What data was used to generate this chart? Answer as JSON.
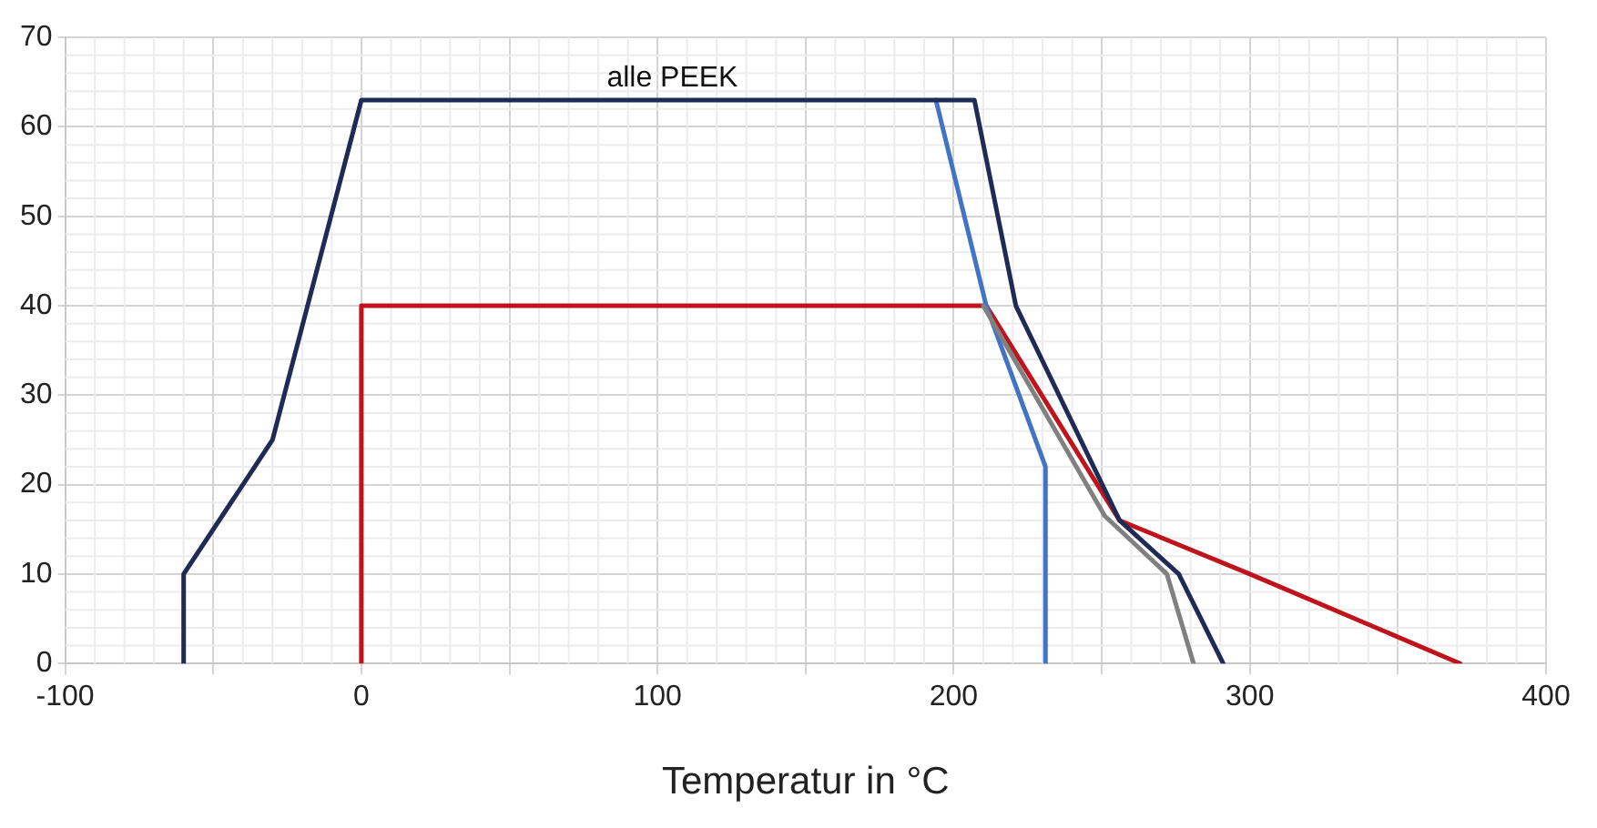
{
  "chart_data": {
    "type": "line",
    "xlabel": "Temperatur in °C",
    "annotations": [
      "alle PEEK"
    ],
    "xlim": [
      -100,
      400
    ],
    "ylim": [
      0,
      70
    ],
    "xticks": [
      -100,
      {
        "value": -50,
        "label": null
      },
      0,
      {
        "value": 50,
        "label": null
      },
      100,
      {
        "value": 150,
        "label": null
      },
      200,
      {
        "value": 250,
        "label": null
      },
      300,
      {
        "value": 350,
        "label": null
      },
      400
    ],
    "yticks": [
      0,
      10,
      20,
      30,
      40,
      50,
      60,
      70
    ],
    "grid": true,
    "legend": false,
    "marker": "none",
    "line_style": "solid",
    "series": [
      {
        "color": "#1f2a55",
        "x": [
          -60,
          -60,
          -30,
          0,
          207,
          221,
          256,
          276,
          291
        ],
        "values": [
          0,
          10,
          25,
          63,
          63,
          40,
          16,
          10,
          0
        ]
      },
      {
        "color": "#808080",
        "x": [
          210,
          251,
          272,
          281
        ],
        "values": [
          40,
          16.5,
          10,
          0
        ]
      },
      {
        "color": "#4472c4",
        "x": [
          194,
          211,
          231,
          231
        ],
        "values": [
          63,
          40,
          22,
          0
        ]
      },
      {
        "color": "#c0141c",
        "x": [
          0,
          0,
          211,
          256,
          300,
          371
        ],
        "values": [
          0,
          40,
          40,
          16,
          10,
          0
        ]
      }
    ]
  }
}
